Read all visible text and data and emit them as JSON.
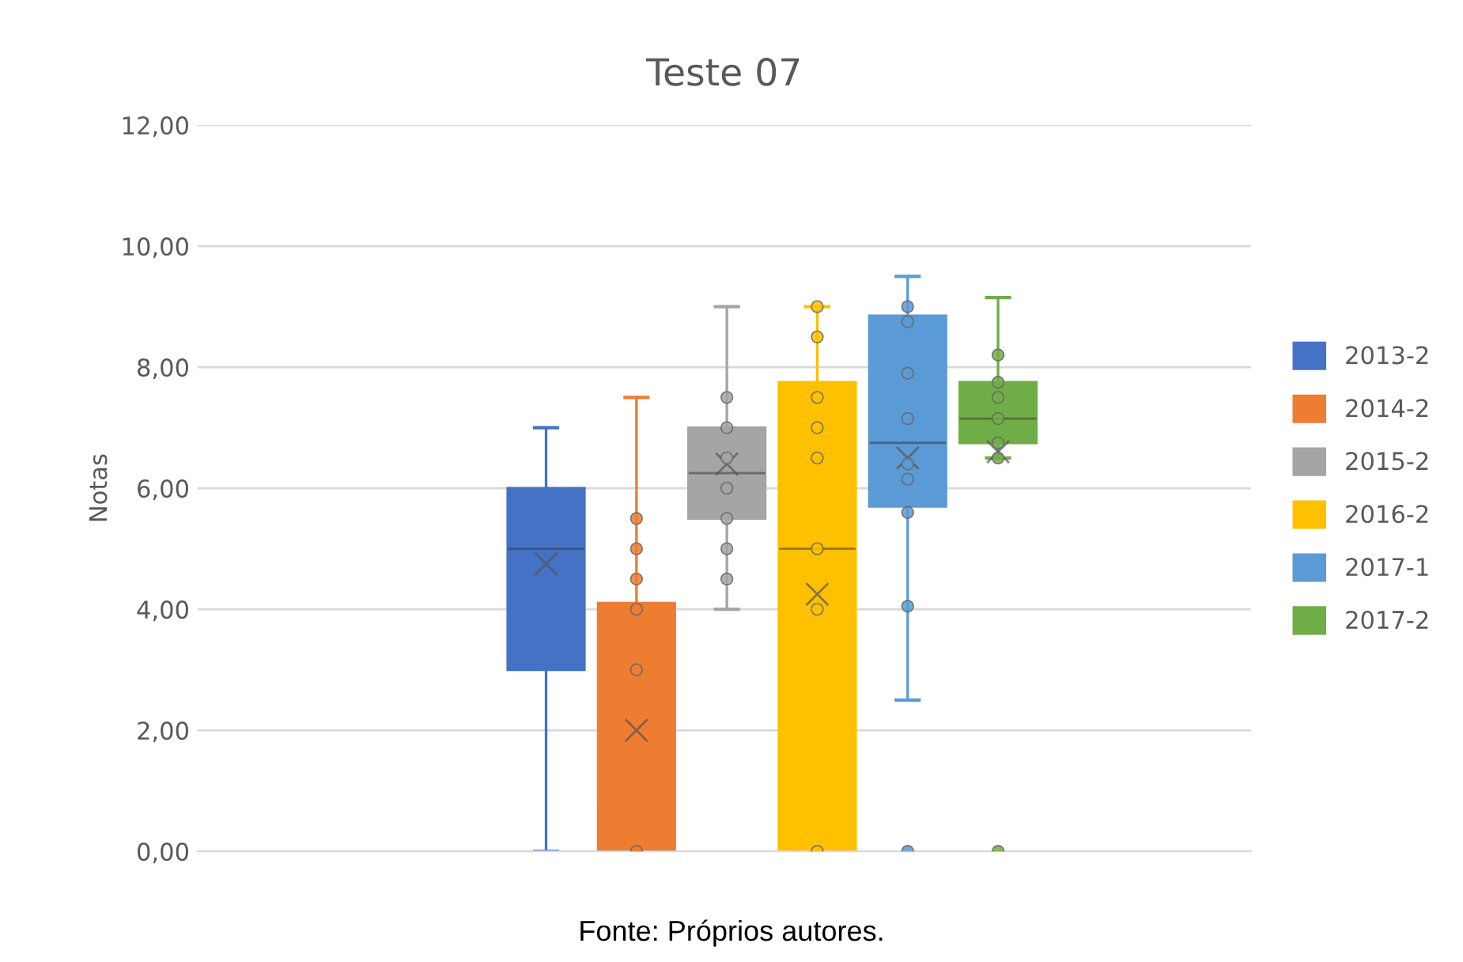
{
  "chart_data": {
    "type": "box",
    "title": "Teste 07",
    "ylabel": "Notas",
    "categories": [
      null
    ],
    "series": [
      {
        "name": "2013-2",
        "color": "#4472c4",
        "boxes": [
          {
            "low": 0,
            "q1": 3.0,
            "median": 5.0,
            "q3": 6.0,
            "high": 7.0,
            "mean": 4.75
          }
        ]
      },
      {
        "name": "2014-2",
        "color": "#ed7d31",
        "boxes": [
          {
            "low": 0,
            "q1": 0,
            "median": 0,
            "q3": 4.1,
            "high": 7.5,
            "mean": 2.0,
            "outliers": [
              5.5,
              5.0,
              4.5,
              4.0,
              3.0,
              0
            ]
          }
        ]
      },
      {
        "name": "2015-2",
        "color": "#a5a5a5",
        "boxes": [
          {
            "low": 4.0,
            "q1": 5.5,
            "median": 6.25,
            "q3": 7.0,
            "high": 9.0,
            "mean": 6.4,
            "outliers": [
              7.5,
              7.0,
              6.5,
              6.0,
              5.5,
              5.0,
              4.5
            ]
          }
        ]
      },
      {
        "name": "2016-2",
        "color": "#ffc000",
        "boxes": [
          {
            "low": 0,
            "q1": 0,
            "median": 5.0,
            "q3": 7.75,
            "high": 9.0,
            "mean": 4.25,
            "outliers": [
              9.0,
              8.5,
              7.5,
              7.0,
              6.5,
              5.0,
              4.0,
              0
            ]
          }
        ]
      },
      {
        "name": "2017-1",
        "color": "#5b9bd5",
        "boxes": [
          {
            "low": 2.5,
            "q1": 5.7,
            "median": 6.75,
            "q3": 8.85,
            "high": 9.5,
            "mean": 6.5,
            "outliers": [
              9.0,
              8.75,
              7.9,
              7.15,
              6.4,
              6.15,
              5.6,
              4.05,
              0
            ]
          }
        ]
      },
      {
        "name": "2017-2",
        "color": "#70ad47",
        "boxes": [
          {
            "low": 6.5,
            "q1": 6.75,
            "median": 7.15,
            "q3": 7.75,
            "high": 9.15,
            "mean": 6.6,
            "outliers": [
              8.2,
              7.75,
              7.5,
              7.15,
              6.75,
              6.5,
              0
            ]
          }
        ]
      }
    ],
    "ylim": [
      0,
      12
    ],
    "yticks": [
      {
        "value": 0,
        "label": "0,00"
      },
      {
        "value": 2,
        "label": "2,00"
      },
      {
        "value": 4,
        "label": "4,00"
      },
      {
        "value": 6,
        "label": "6,00"
      },
      {
        "value": 8,
        "label": "8,00"
      },
      {
        "value": 10,
        "label": "10,00"
      },
      {
        "value": 12,
        "label": "12,00"
      }
    ],
    "grid": "y",
    "legend": "right",
    "marker": "circle",
    "annotations": [
      "Fonte: Próprios autores."
    ]
  }
}
